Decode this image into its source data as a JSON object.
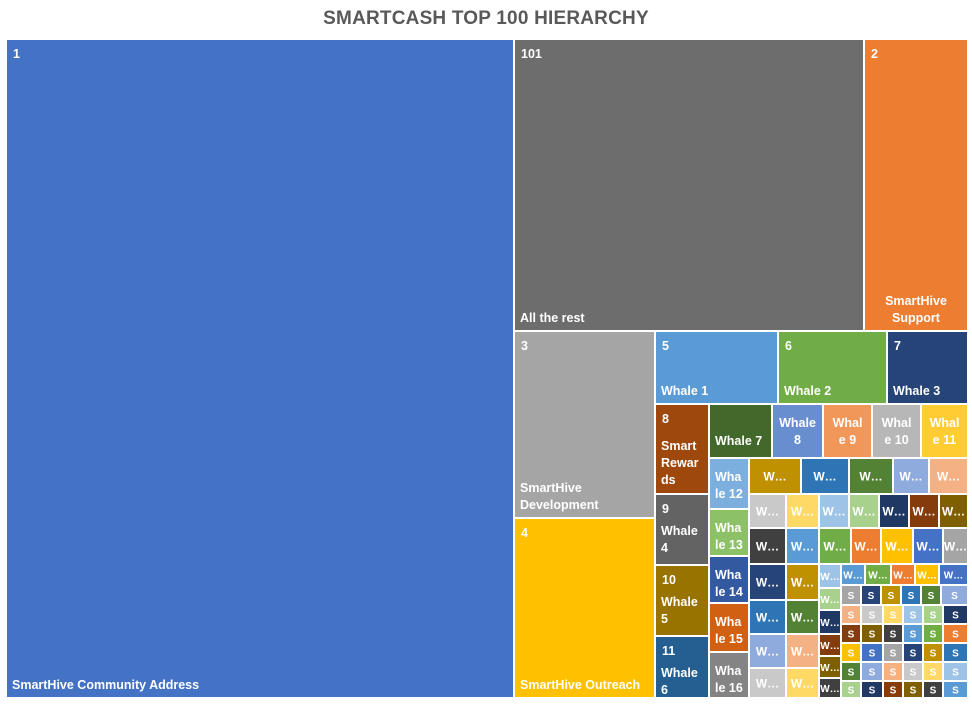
{
  "chart_data": {
    "type": "treemap",
    "title": "SMARTCASH TOP 100 HIERARCHY",
    "label_fields": [
      "rank",
      "name"
    ],
    "tiles": [
      {
        "rank": "1",
        "name": "SmartHive Community Address",
        "color": "#4472C4"
      },
      {
        "rank": "101",
        "name": "All the rest",
        "color": "#6D6D6D"
      },
      {
        "rank": "2",
        "name": "SmartHive Support",
        "color": "#ED7D31"
      },
      {
        "rank": "3",
        "name": "SmartHive Development",
        "color": "#A5A5A5"
      },
      {
        "rank": "4",
        "name": "SmartHive Outreach",
        "color": "#FFC000"
      },
      {
        "rank": "5",
        "name": "Whale 1",
        "color": "#5B9BD5"
      },
      {
        "rank": "6",
        "name": "Whale 2",
        "color": "#70AD47"
      },
      {
        "rank": "7",
        "name": "Whale 3",
        "color": "#264478"
      },
      {
        "rank": "8",
        "name": "Smart Rewards",
        "color": "#9E480E"
      },
      {
        "rank": "9",
        "name": "Whale 4",
        "color": "#636363"
      },
      {
        "rank": "10",
        "name": "Whale 5",
        "color": "#997300"
      },
      {
        "rank": "11",
        "name": "Whale 6",
        "color": "#255E91"
      },
      {
        "rank": "",
        "name": "Whale 7",
        "color": "#43682B"
      },
      {
        "rank": "",
        "name": "Whale 8",
        "color": "#698ED0"
      },
      {
        "rank": "",
        "name": "Whale 9",
        "color": "#F1975A"
      },
      {
        "rank": "",
        "name": "Whale 10",
        "color": "#B7B7B7"
      },
      {
        "rank": "",
        "name": "Whale 11",
        "color": "#FFCD33"
      },
      {
        "rank": "",
        "name": "Whale 12",
        "color": "#7CAFDD"
      },
      {
        "rank": "",
        "name": "Whale 13",
        "color": "#8CC168"
      },
      {
        "rank": "",
        "name": "Whale 14",
        "color": "#335AA1"
      },
      {
        "rank": "",
        "name": "Whale 15",
        "color": "#D26012"
      },
      {
        "rank": "",
        "name": "Whale 16",
        "color": "#848484"
      }
    ],
    "small_tile_labels": [
      "W…",
      "S"
    ],
    "small_tile_colors": [
      "#BF9000",
      "#2E75B6",
      "#548235",
      "#8FAADC",
      "#F4B183",
      "#C9C9C9",
      "#FFD966",
      "#9DC3E6",
      "#A9D18E",
      "#1F3864",
      "#843C0C",
      "#7F6000",
      "#404040",
      "#5B9BD5",
      "#70AD47",
      "#ED7D31",
      "#FFC000",
      "#4472C4",
      "#A5A5A5",
      "#264478"
    ]
  }
}
